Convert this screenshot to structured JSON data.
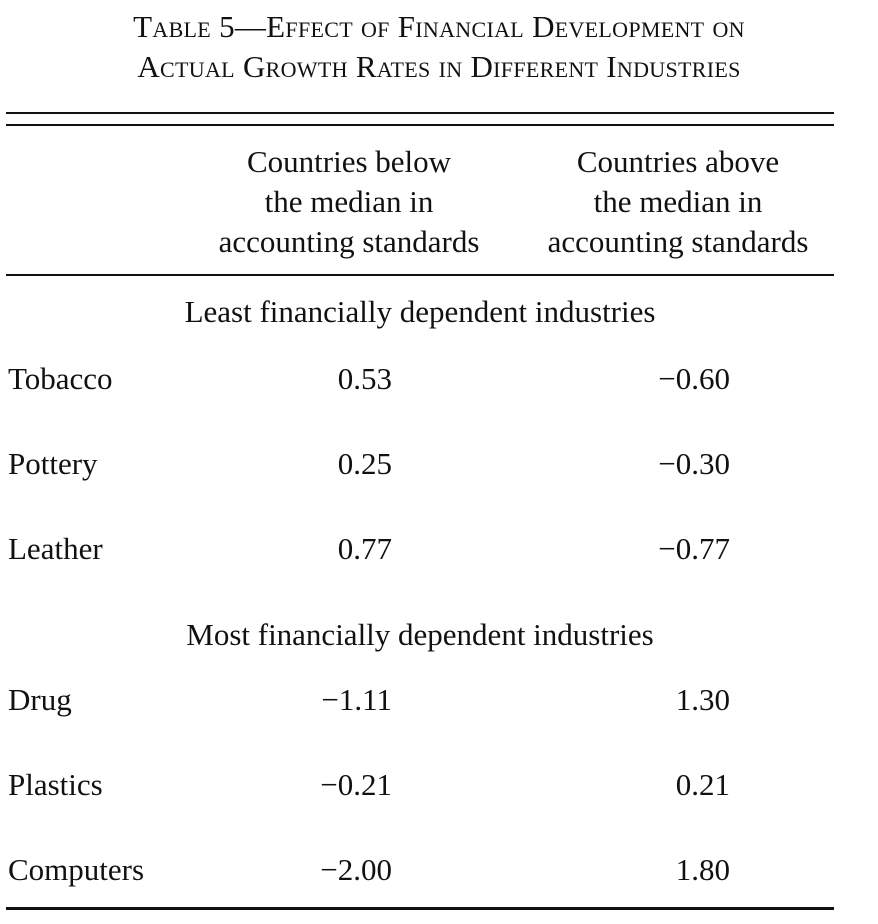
{
  "table": {
    "title_line1": "Table 5—Effect of Financial Development on",
    "title_line2": "Actual Growth Rates in Different Industries",
    "columns": [
      {
        "lines": [
          "Countries below",
          "the median in",
          "accounting standards"
        ]
      },
      {
        "lines": [
          "Countries above",
          "the median in",
          "accounting standards"
        ]
      }
    ],
    "sections": [
      {
        "title": "Least financially dependent industries",
        "rows": [
          {
            "label": "Tobacco",
            "below": "0.53",
            "above": "−0.60"
          },
          {
            "label": "Pottery",
            "below": "0.25",
            "above": "−0.30"
          },
          {
            "label": "Leather",
            "below": "0.77",
            "above": "−0.77"
          }
        ]
      },
      {
        "title": "Most financially dependent industries",
        "rows": [
          {
            "label": "Drug",
            "below": "−1.11",
            "above": "1.30"
          },
          {
            "label": "Plastics",
            "below": "−0.21",
            "above": "0.21"
          },
          {
            "label": "Computers",
            "below": "−2.00",
            "above": "1.80"
          }
        ]
      }
    ]
  }
}
